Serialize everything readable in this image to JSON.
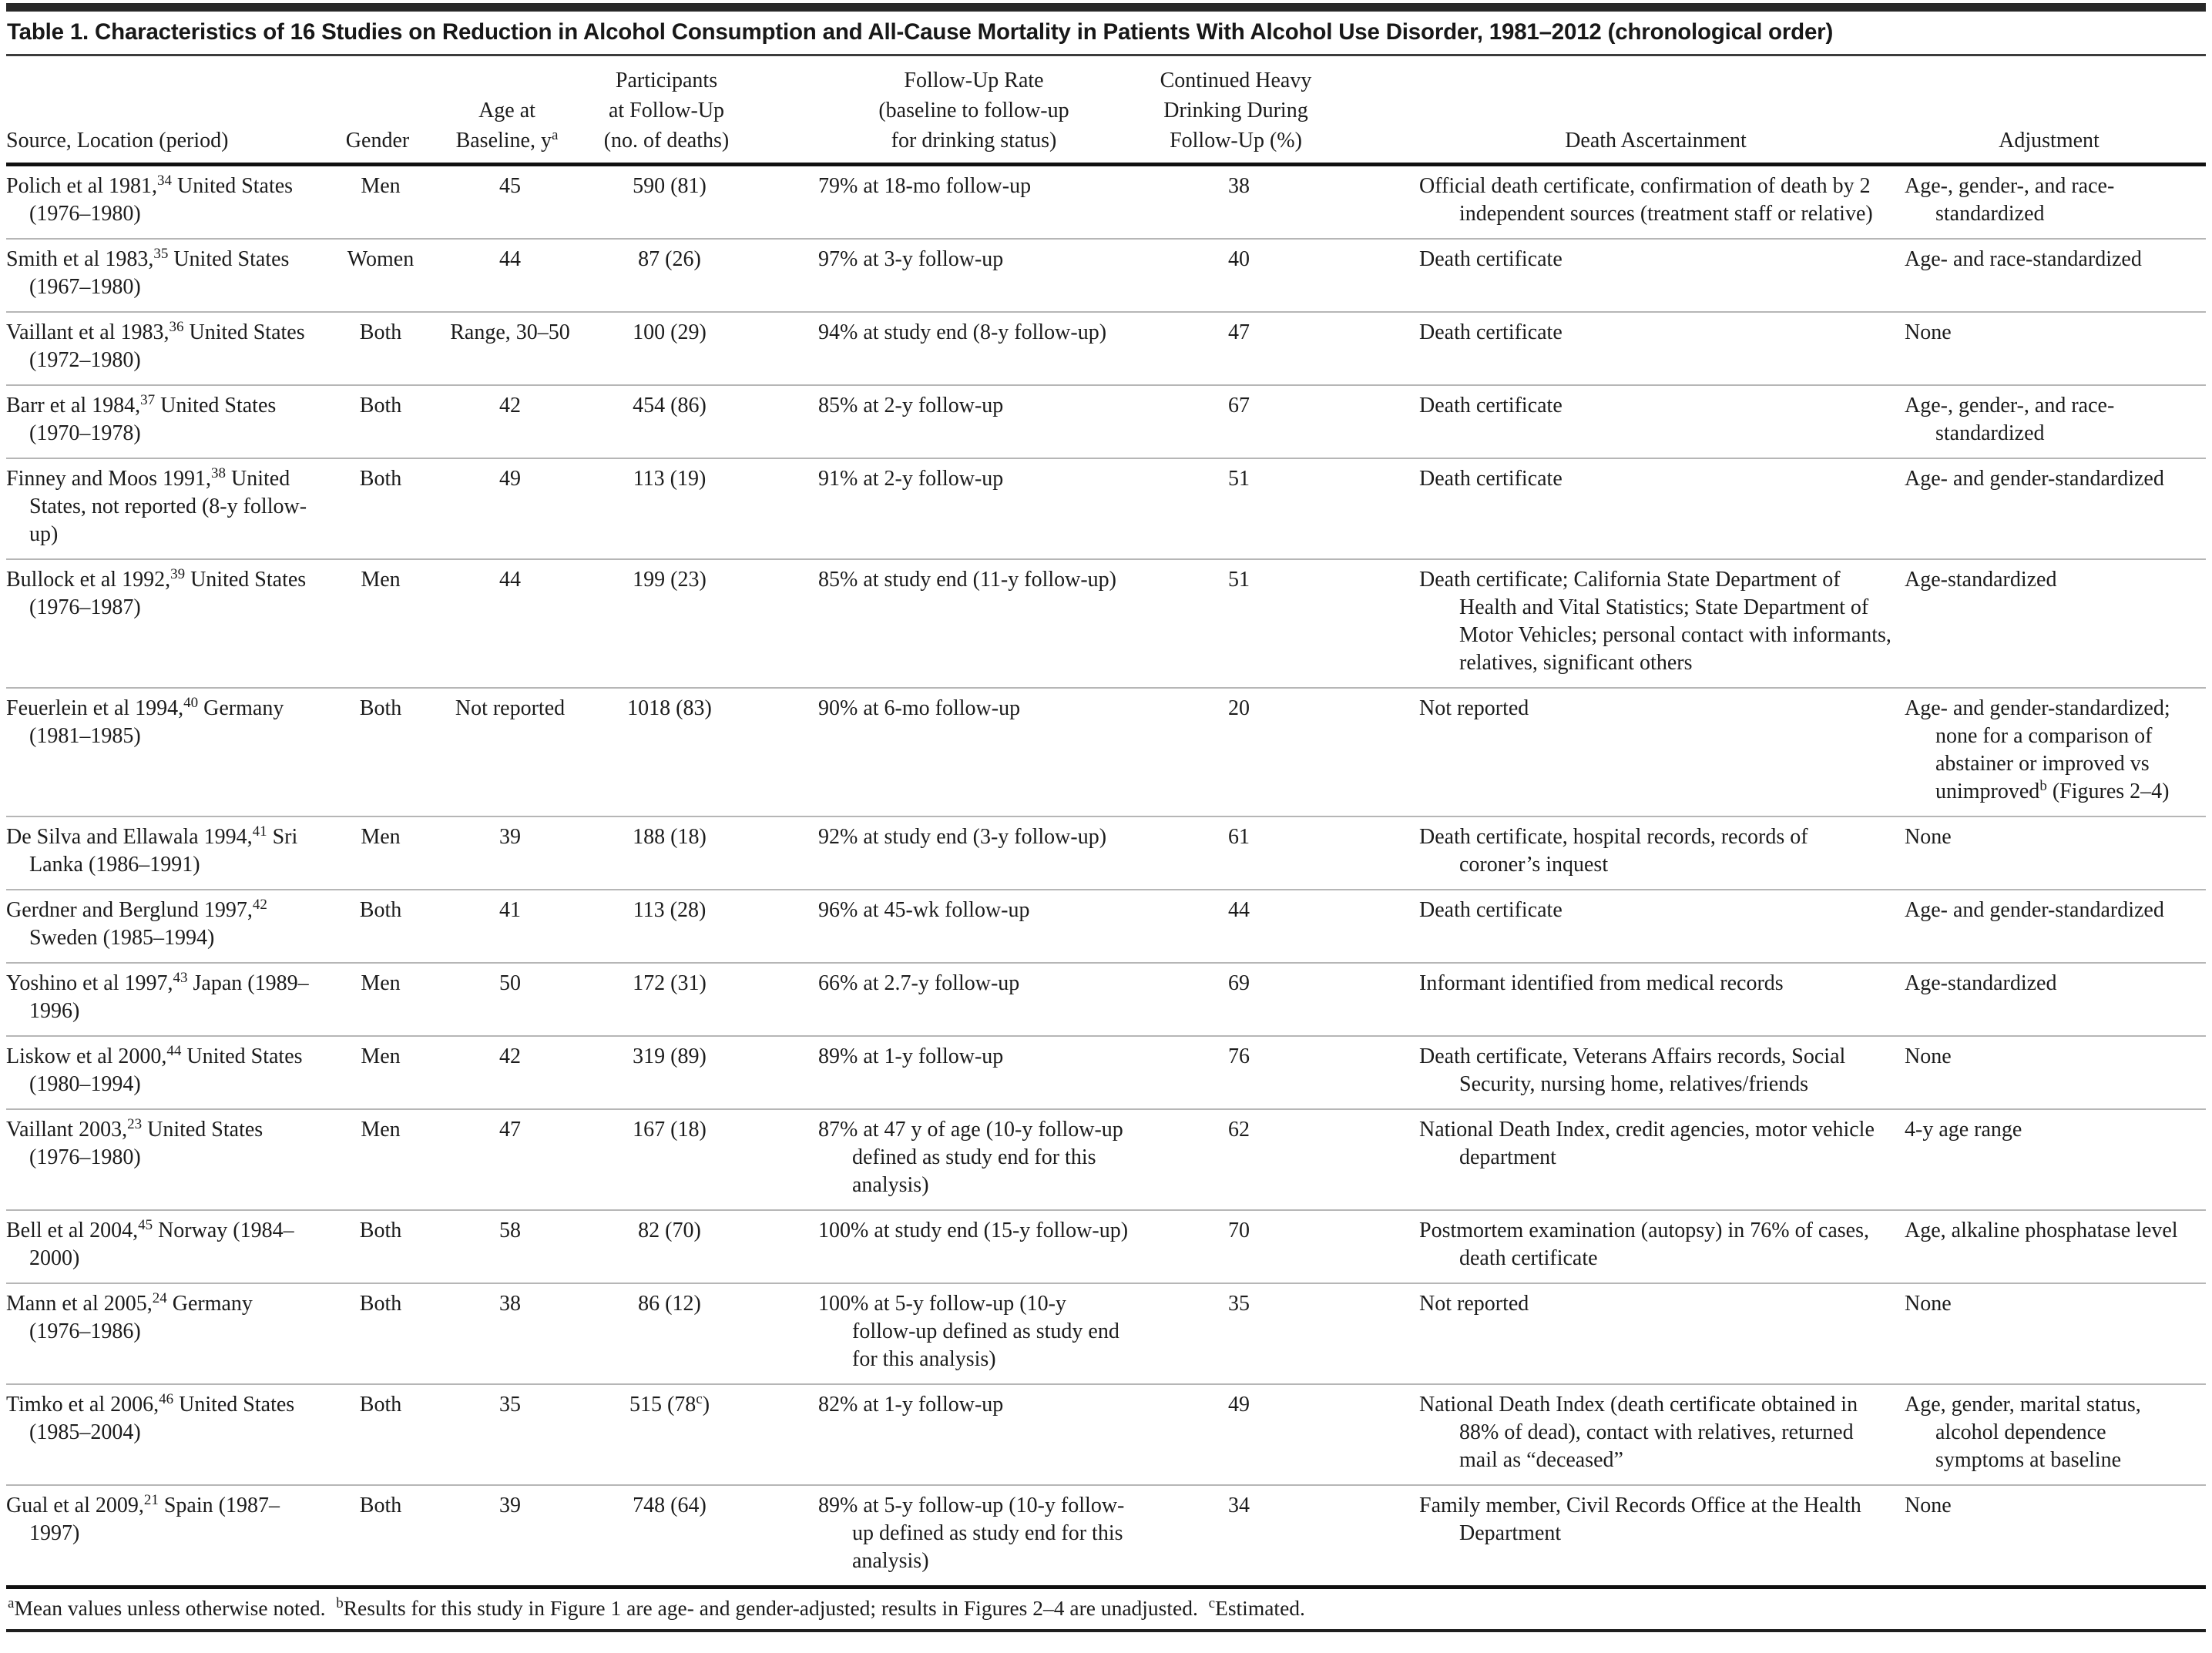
{
  "colors": {
    "text": "#1c1c1c",
    "top_bar": "#282828",
    "rule_dark": "#101010",
    "rule_gray": "#b6b6b6",
    "title_rule": "#3c3c3c",
    "bg": "#ffffff"
  },
  "table": {
    "title": "Table 1. Characteristics of 16 Studies on Reduction in Alcohol Consumption and All-Cause Mortality in Patients With Alcohol Use Disorder, 1981–2012 (chronological order)",
    "columns": [
      {
        "id": "source",
        "align": "left",
        "header_align": "left",
        "lines": [
          [
            {
              "t": "Source, Location (period)"
            }
          ]
        ]
      },
      {
        "id": "gender",
        "align": "center",
        "header_align": "center",
        "lines": [
          [
            {
              "t": "Gender"
            }
          ]
        ]
      },
      {
        "id": "age",
        "align": "center",
        "header_align": "center",
        "lines": [
          [
            {
              "t": "Age at"
            }
          ],
          [
            {
              "t": "Baseline, y"
            },
            {
              "sup": "a"
            }
          ]
        ]
      },
      {
        "id": "participants",
        "align": "center",
        "header_align": "center",
        "lines": [
          [
            {
              "t": "Participants"
            }
          ],
          [
            {
              "t": "at Follow-Up"
            }
          ],
          [
            {
              "t": "(no. of deaths)"
            }
          ]
        ]
      },
      {
        "id": "followup",
        "align": "left",
        "header_align": "center",
        "lines": [
          [
            {
              "t": "Follow-Up Rate"
            }
          ],
          [
            {
              "t": "(baseline to follow-up"
            }
          ],
          [
            {
              "t": "for drinking status)"
            }
          ]
        ]
      },
      {
        "id": "heavy",
        "align": "center",
        "header_align": "center",
        "lines": [
          [
            {
              "t": "Continued Heavy"
            }
          ],
          [
            {
              "t": "Drinking During"
            }
          ],
          [
            {
              "t": "Follow-Up (%)"
            }
          ]
        ]
      },
      {
        "id": "death",
        "align": "left",
        "header_align": "center",
        "lines": [
          [
            {
              "t": "Death Ascertainment"
            }
          ]
        ]
      },
      {
        "id": "adjustment",
        "align": "left",
        "header_align": "center",
        "lines": [
          [
            {
              "t": "Adjustment"
            }
          ]
        ]
      }
    ],
    "rows": [
      {
        "source": [
          {
            "t": "Polich et al 1981,"
          },
          {
            "sup": "34"
          },
          {
            "t": " United States (1976–1980)"
          }
        ],
        "gender": "Men",
        "age": "45",
        "participants": "590 (81)",
        "followup": "79% at 18-mo follow-up",
        "heavy": "38",
        "death": "Official death certificate, confirmation of death by 2 independent sources (treatment staff or relative)",
        "adjustment": "Age-, gender-, and race-standardized"
      },
      {
        "source": [
          {
            "t": "Smith et al 1983,"
          },
          {
            "sup": "35"
          },
          {
            "t": " United States (1967–1980)"
          }
        ],
        "gender": "Women",
        "age": "44",
        "participants": "87 (26)",
        "followup": "97% at 3-y follow-up",
        "heavy": "40",
        "death": "Death certificate",
        "adjustment": "Age- and race-standardized"
      },
      {
        "source": [
          {
            "t": "Vaillant et al 1983,"
          },
          {
            "sup": "36"
          },
          {
            "t": " United States (1972–1980)"
          }
        ],
        "gender": "Both",
        "age": "Range, 30–50",
        "participants": "100 (29)",
        "followup": "94% at study end (8-y follow-up)",
        "heavy": "47",
        "death": "Death certificate",
        "adjustment": "None"
      },
      {
        "source": [
          {
            "t": "Barr et al 1984,"
          },
          {
            "sup": "37"
          },
          {
            "t": " United States (1970–1978)"
          }
        ],
        "gender": "Both",
        "age": "42",
        "participants": "454 (86)",
        "followup": "85% at 2-y follow-up",
        "heavy": "67",
        "death": "Death certificate",
        "adjustment": "Age-, gender-, and race-standardized"
      },
      {
        "source": [
          {
            "t": "Finney and Moos 1991,"
          },
          {
            "sup": "38"
          },
          {
            "t": " United States, not reported (8-y follow-up)"
          }
        ],
        "gender": "Both",
        "age": "49",
        "participants": "113 (19)",
        "followup": "91% at 2-y follow-up",
        "heavy": "51",
        "death": "Death certificate",
        "adjustment": "Age- and gender-standardized"
      },
      {
        "source": [
          {
            "t": "Bullock et al 1992,"
          },
          {
            "sup": "39"
          },
          {
            "t": " United States (1976–1987)"
          }
        ],
        "gender": "Men",
        "age": "44",
        "participants": "199 (23)",
        "followup": "85% at study end (11-y follow-up)",
        "heavy": "51",
        "death": "Death certificate; California State Department of Health and Vital Statistics; State Department of Motor Vehicles; personal contact with informants, relatives, significant others",
        "adjustment": "Age-standardized"
      },
      {
        "source": [
          {
            "t": "Feuerlein et al 1994,"
          },
          {
            "sup": "40"
          },
          {
            "t": " Germany (1981–1985)"
          }
        ],
        "gender": "Both",
        "age": "Not reported",
        "participants": "1018 (83)",
        "followup": "90% at 6-mo follow-up",
        "heavy": "20",
        "death": "Not reported",
        "adjustment": [
          {
            "t": "Age- and gender-standardized; none for a comparison of abstainer or improved vs unimproved"
          },
          {
            "sup": "b"
          },
          {
            "t": " (Figures 2–4)"
          }
        ]
      },
      {
        "source": [
          {
            "t": "De Silva and Ellawala 1994,"
          },
          {
            "sup": "41"
          },
          {
            "t": " Sri Lanka (1986–1991)"
          }
        ],
        "gender": "Men",
        "age": "39",
        "participants": "188 (18)",
        "followup": "92% at study end (3-y follow-up)",
        "heavy": "61",
        "death": "Death certificate, hospital records, records of coroner’s inquest",
        "adjustment": "None"
      },
      {
        "source": [
          {
            "t": "Gerdner and Berglund 1997,"
          },
          {
            "sup": "42"
          },
          {
            "t": " Sweden (1985–1994)"
          }
        ],
        "gender": "Both",
        "age": "41",
        "participants": "113 (28)",
        "followup": "96% at 45-wk follow-up",
        "heavy": "44",
        "death": "Death certificate",
        "adjustment": "Age- and gender-standardized"
      },
      {
        "source": [
          {
            "t": "Yoshino et al 1997,"
          },
          {
            "sup": "43"
          },
          {
            "t": " Japan (1989–1996)"
          }
        ],
        "gender": "Men",
        "age": "50",
        "participants": "172 (31)",
        "followup": "66% at 2.7-y follow-up",
        "heavy": "69",
        "death": "Informant identified from medical records",
        "adjustment": "Age-standardized"
      },
      {
        "source": [
          {
            "t": "Liskow et al 2000,"
          },
          {
            "sup": "44"
          },
          {
            "t": " United States (1980–1994)"
          }
        ],
        "gender": "Men",
        "age": "42",
        "participants": "319 (89)",
        "followup": "89% at 1-y follow-up",
        "heavy": "76",
        "death": "Death certificate, Veterans Affairs records, Social Security, nursing home, relatives/friends",
        "adjustment": "None"
      },
      {
        "source": [
          {
            "t": "Vaillant 2003,"
          },
          {
            "sup": "23"
          },
          {
            "t": " United States (1976–1980)"
          }
        ],
        "gender": "Men",
        "age": "47",
        "participants": "167 (18)",
        "followup": "87% at 47 y of age (10-y follow-up defined as study end for this analysis)",
        "heavy": "62",
        "death": "National Death Index, credit agencies, motor vehicle department",
        "adjustment": "4-y age range"
      },
      {
        "source": [
          {
            "t": "Bell et al 2004,"
          },
          {
            "sup": "45"
          },
          {
            "t": " Norway (1984–2000)"
          }
        ],
        "gender": "Both",
        "age": "58",
        "participants": "82 (70)",
        "followup": "100% at study end (15-y follow-up)",
        "heavy": "70",
        "death": "Postmortem examination (autopsy) in 76% of cases, death certificate",
        "adjustment": "Age, alkaline phosphatase level"
      },
      {
        "source": [
          {
            "t": "Mann et al 2005,"
          },
          {
            "sup": "24"
          },
          {
            "t": " Germany (1976–1986)"
          }
        ],
        "gender": "Both",
        "age": "38",
        "participants": "86 (12)",
        "followup": "100% at 5-y follow-up (10-y follow-up defined as study end for this analysis)",
        "heavy": "35",
        "death": "Not reported",
        "adjustment": "None"
      },
      {
        "source": [
          {
            "t": "Timko et al 2006,"
          },
          {
            "sup": "46"
          },
          {
            "t": " United States (1985–2004)"
          }
        ],
        "gender": "Both",
        "age": "35",
        "participants": [
          {
            "t": "515 (78"
          },
          {
            "sup": "c"
          },
          {
            "t": ")"
          }
        ],
        "followup": "82% at 1-y follow-up",
        "heavy": "49",
        "death": "National Death Index (death certificate obtained in 88% of dead), contact with relatives, returned mail as “deceased”",
        "adjustment": "Age, gender, marital status, alcohol dependence symptoms at baseline"
      },
      {
        "source": [
          {
            "t": "Gual et al 2009,"
          },
          {
            "sup": "21"
          },
          {
            "t": " Spain (1987–1997)"
          }
        ],
        "gender": "Both",
        "age": "39",
        "participants": "748 (64)",
        "followup": "89% at 5-y follow-up (10-y follow-up defined as study end for this analysis)",
        "heavy": "34",
        "death": "Family member, Civil Records Office at the Health Department",
        "adjustment": "None"
      }
    ],
    "footnote_segments": [
      {
        "sup": "a"
      },
      {
        "t": "Mean values unless otherwise noted. "
      },
      {
        "sup": "b"
      },
      {
        "t": "Results for this study in Figure 1 are age- and gender-adjusted; results in Figures 2–4 are unadjusted. "
      },
      {
        "sup": "c"
      },
      {
        "t": "Estimated."
      }
    ]
  }
}
